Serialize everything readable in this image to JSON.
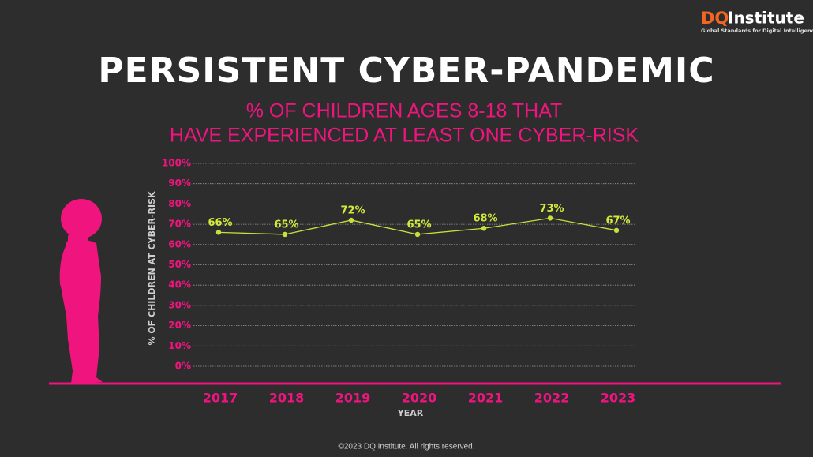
{
  "logo": {
    "mark": "DQ",
    "name": "Institute",
    "tagline": "Global Standards for Digital Intelligence"
  },
  "footer": "©2023 DQ Institute. All rights reserved.",
  "chart_data": {
    "type": "line",
    "title": "PERSISTENT CYBER-PANDEMIC",
    "subtitle": [
      "% OF CHILDREN AGES 8-18 THAT",
      "HAVE EXPERIENCED AT LEAST ONE CYBER-RISK"
    ],
    "y_label": "% OF CHILDREN AT CYBER-RISK",
    "x_label": "YEAR",
    "categories": [
      "2017",
      "2018",
      "2019",
      "2020",
      "2021",
      "2022",
      "2023"
    ],
    "values": [
      66,
      65,
      72,
      65,
      68,
      73,
      67
    ],
    "value_labels": [
      "66%",
      "65%",
      "72%",
      "65%",
      "68%",
      "73%",
      "67%"
    ],
    "color": "#c8e03c",
    "ylim": [
      0,
      100
    ],
    "yticks": [
      {
        "value": 0,
        "label": "0%"
      },
      {
        "value": 10,
        "label": "10%"
      },
      {
        "value": 20,
        "label": "20%"
      },
      {
        "value": 30,
        "label": "30%"
      },
      {
        "value": 40,
        "label": "40%"
      },
      {
        "value": 50,
        "label": "50%"
      },
      {
        "value": 60,
        "label": "60%"
      },
      {
        "value": 70,
        "label": "70%"
      },
      {
        "value": 80,
        "label": "80%"
      },
      {
        "value": 90,
        "label": "90%"
      },
      {
        "value": 100,
        "label": "100%"
      }
    ],
    "grid": true
  }
}
